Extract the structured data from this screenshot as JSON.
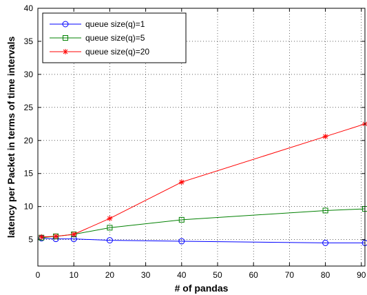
{
  "chart_data": {
    "type": "line",
    "title": "",
    "xlabel": "# of pandas",
    "ylabel": "latency per Packet in terms of time intervals",
    "xlim": [
      0,
      91
    ],
    "ylim": [
      1,
      40
    ],
    "xticks": [
      0,
      10,
      20,
      30,
      40,
      50,
      60,
      70,
      80,
      90
    ],
    "yticks": [
      5,
      10,
      15,
      20,
      25,
      30,
      35,
      40
    ],
    "grid": true,
    "legend_position": "top-left",
    "series": [
      {
        "name": "queue size(q)=1",
        "color": "#0000ff",
        "marker": "circle",
        "x": [
          1,
          5,
          10,
          20,
          40,
          80,
          91
        ],
        "y": [
          5.2,
          5.1,
          5.1,
          4.9,
          4.75,
          4.5,
          4.5
        ]
      },
      {
        "name": "queue size(q)=5",
        "color": "#008000",
        "marker": "square",
        "x": [
          1,
          5,
          10,
          20,
          40,
          80,
          91
        ],
        "y": [
          5.3,
          5.5,
          5.8,
          6.8,
          8.0,
          9.4,
          9.65
        ]
      },
      {
        "name": "queue size(q)=20",
        "color": "#ff0000",
        "marker": "star",
        "x": [
          1,
          5,
          10,
          20,
          40,
          80,
          91
        ],
        "y": [
          5.4,
          5.5,
          5.8,
          8.2,
          13.7,
          20.6,
          22.5
        ]
      }
    ]
  }
}
